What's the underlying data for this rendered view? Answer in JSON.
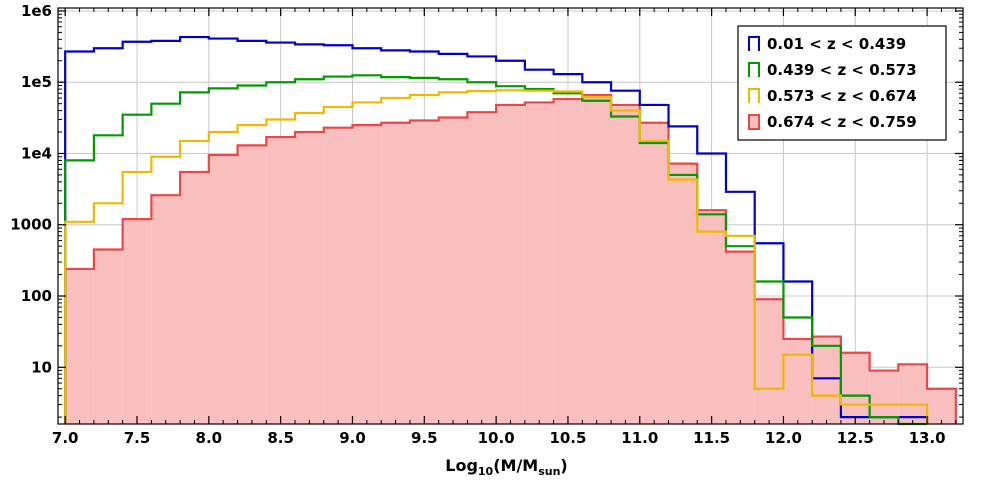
{
  "chart_data": {
    "type": "histogram",
    "title": "",
    "xlabel": {
      "prefix": "Log",
      "sub1": "10",
      "mid": "(M/M",
      "sub2": "sun",
      "suffix": ")"
    },
    "ylabel": "",
    "y_scale": "log",
    "xlim": [
      6.95,
      13.25
    ],
    "ylim": [
      1.6,
      1100000
    ],
    "grid": true,
    "legend_position": "top-right",
    "bin_edges": [
      7.0,
      7.2,
      7.4,
      7.6,
      7.8,
      8.0,
      8.2,
      8.4,
      8.6,
      8.8,
      9.0,
      9.2,
      9.4,
      9.6,
      9.8,
      10.0,
      10.2,
      10.4,
      10.6,
      10.8,
      11.0,
      11.2,
      11.4,
      11.6,
      11.8,
      12.0,
      12.2,
      12.4,
      12.6,
      12.8,
      13.0,
      13.2
    ],
    "x_ticks": [
      {
        "value": 7.0,
        "label": "7.0"
      },
      {
        "value": 7.5,
        "label": "7.5"
      },
      {
        "value": 8.0,
        "label": "8.0"
      },
      {
        "value": 8.5,
        "label": "8.5"
      },
      {
        "value": 9.0,
        "label": "9.0"
      },
      {
        "value": 9.5,
        "label": "9.5"
      },
      {
        "value": 10.0,
        "label": "10.0"
      },
      {
        "value": 10.5,
        "label": "10.5"
      },
      {
        "value": 11.0,
        "label": "11.0"
      },
      {
        "value": 11.5,
        "label": "11.5"
      },
      {
        "value": 12.0,
        "label": "12.0"
      },
      {
        "value": 12.5,
        "label": "12.5"
      },
      {
        "value": 13.0,
        "label": "13.0"
      }
    ],
    "x_minor_ticks": [
      7.1,
      7.2,
      7.3,
      7.4,
      7.6,
      7.7,
      7.8,
      7.9,
      8.1,
      8.2,
      8.3,
      8.4,
      8.6,
      8.7,
      8.8,
      8.9,
      9.1,
      9.2,
      9.3,
      9.4,
      9.6,
      9.7,
      9.8,
      9.9,
      10.1,
      10.2,
      10.3,
      10.4,
      10.6,
      10.7,
      10.8,
      10.9,
      11.1,
      11.2,
      11.3,
      11.4,
      11.6,
      11.7,
      11.8,
      11.9,
      12.1,
      12.2,
      12.3,
      12.4,
      12.6,
      12.7,
      12.8,
      12.9,
      13.1,
      13.2
    ],
    "y_ticks": [
      {
        "value": 10,
        "label": "10"
      },
      {
        "value": 100,
        "label": "100"
      },
      {
        "value": 1000,
        "label": "1000"
      },
      {
        "value": 10000,
        "label": "1e4"
      },
      {
        "value": 100000,
        "label": "1e5"
      },
      {
        "value": 1000000,
        "label": "1e6"
      }
    ],
    "series": [
      {
        "name": "0.01 < z < 0.439",
        "color": "#0000cc",
        "fill": false,
        "values": [
          270000,
          300000,
          370000,
          380000,
          430000,
          410000,
          380000,
          360000,
          340000,
          330000,
          300000,
          280000,
          270000,
          250000,
          230000,
          200000,
          150000,
          130000,
          100000,
          76000,
          48000,
          24000,
          10000,
          2900,
          550,
          160,
          7,
          2,
          2,
          2,
          null
        ]
      },
      {
        "name": "0.439 < z < 0.573",
        "color": "#009900",
        "fill": false,
        "values": [
          8000,
          18000,
          35000,
          50000,
          72000,
          82000,
          90000,
          100000,
          110000,
          120000,
          125000,
          118000,
          115000,
          110000,
          100000,
          88000,
          80000,
          70000,
          55000,
          33000,
          14000,
          5000,
          1400,
          500,
          160,
          50,
          20,
          4,
          2,
          1,
          null
        ]
      },
      {
        "name": "0.573 < z < 0.674",
        "color": "#f0b800",
        "fill": false,
        "values": [
          1100,
          2000,
          5500,
          9000,
          15000,
          20000,
          25000,
          30000,
          37000,
          45000,
          52000,
          60000,
          66000,
          72000,
          75000,
          77000,
          76000,
          74000,
          62000,
          40000,
          15000,
          4300,
          800,
          700,
          5,
          15,
          4,
          3,
          3,
          3,
          null
        ]
      },
      {
        "name": "0.674 < z < 0.759",
        "color": "#e84848",
        "fill": true,
        "fill_color": "#f9bfbf",
        "values": [
          240,
          450,
          1200,
          2600,
          5500,
          9500,
          13000,
          17000,
          20000,
          23000,
          25000,
          27000,
          29000,
          32000,
          38000,
          48000,
          52000,
          58000,
          66000,
          48000,
          27000,
          7200,
          1600,
          420,
          90,
          25,
          27,
          16,
          9,
          11,
          5
        ]
      }
    ]
  }
}
